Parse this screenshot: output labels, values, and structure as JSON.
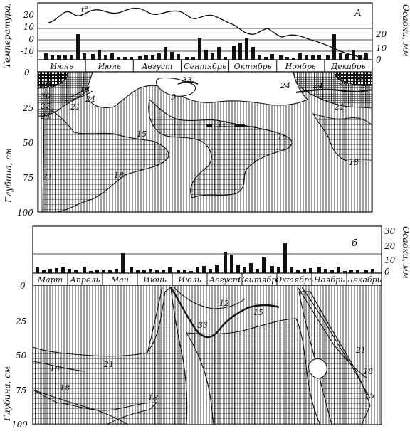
{
  "panel_a": {
    "letter": "А",
    "temp_axis_label": "Температура, °C",
    "precip_axis_label": "Осадки, мм",
    "depth_axis_label": "Глубина, см",
    "temp_series_label": "t°",
    "temp_ticks": [
      "20",
      "10",
      "0",
      "-10"
    ],
    "precip_ticks": [
      "20",
      "10",
      "0"
    ],
    "depth_ticks": [
      "0",
      "25",
      "50",
      "75",
      "100"
    ],
    "months": [
      "Июнь",
      "Июль",
      "Август",
      "Сентябрь",
      "Октябрь",
      "Ноябрь",
      "Декабрь"
    ],
    "contour_labels": [
      "40",
      "30",
      "27",
      "24",
      "21",
      "18",
      "24",
      "18",
      "15",
      "9",
      "12",
      "15",
      "21",
      "24",
      "18",
      "21",
      "18",
      "24",
      "30",
      "40",
      "33"
    ]
  },
  "panel_b": {
    "letter": "б",
    "precip_axis_label": "Осадки, мм",
    "depth_axis_label": "Глубина, см",
    "precip_ticks": [
      "30",
      "20",
      "10",
      "0"
    ],
    "depth_ticks": [
      "0",
      "25",
      "50",
      "75",
      "100"
    ],
    "months": [
      "Март",
      "Апрель",
      "Май",
      "Июнь",
      "Июль",
      "Август",
      "Сентябрь",
      "Октябрь",
      "Ноябрь",
      "Декабрь"
    ],
    "contour_labels": [
      "12",
      "15",
      "33",
      "21",
      "18",
      "18",
      "18",
      "21",
      "18",
      "15"
    ]
  },
  "colors": {
    "ink": "#111111",
    "paper": "#ffffff"
  }
}
